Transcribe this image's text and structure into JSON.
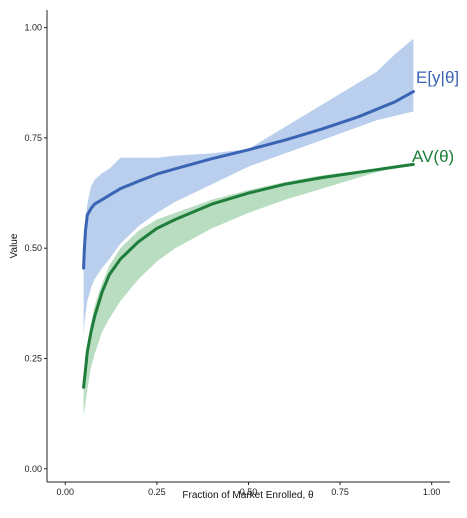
{
  "chart_data": {
    "type": "line",
    "title": "",
    "xlabel": "Fraction of Market Enrolled, θ",
    "ylabel": "Value",
    "xlim": [
      -0.05,
      1.05
    ],
    "ylim": [
      -0.03,
      1.04
    ],
    "x_ticks": [
      0.0,
      0.25,
      0.5,
      0.75,
      1.0
    ],
    "x_tick_labels": [
      "0.00",
      "0.25",
      "0.50",
      "0.75",
      "1.00"
    ],
    "y_ticks": [
      0.0,
      0.25,
      0.5,
      0.75,
      1.0
    ],
    "y_tick_labels": [
      "0.00",
      "0.25",
      "0.50",
      "0.75",
      "1.00"
    ],
    "grid": false,
    "legend": "direct labels at line ends (right)",
    "series": [
      {
        "name": "E[y|θ]",
        "color": "#3a64b4",
        "band_color": "#a9c3e8",
        "x": [
          0.05,
          0.052,
          0.055,
          0.06,
          0.07,
          0.08,
          0.1,
          0.12,
          0.15,
          0.2,
          0.25,
          0.3,
          0.4,
          0.5,
          0.6,
          0.7,
          0.8,
          0.85,
          0.9,
          0.95
        ],
        "y": [
          0.455,
          0.5,
          0.54,
          0.575,
          0.59,
          0.6,
          0.61,
          0.62,
          0.635,
          0.652,
          0.668,
          0.68,
          0.703,
          0.723,
          0.745,
          0.77,
          0.798,
          0.815,
          0.832,
          0.855
        ],
        "lower": [
          0.3,
          0.33,
          0.35,
          0.38,
          0.41,
          0.43,
          0.455,
          0.475,
          0.51,
          0.55,
          0.58,
          0.605,
          0.645,
          0.685,
          0.715,
          0.745,
          0.775,
          0.79,
          0.8,
          0.81
        ],
        "upper": [
          0.47,
          0.53,
          0.57,
          0.6,
          0.64,
          0.655,
          0.67,
          0.68,
          0.705,
          0.705,
          0.705,
          0.71,
          0.715,
          0.725,
          0.775,
          0.825,
          0.875,
          0.9,
          0.94,
          0.975
        ]
      },
      {
        "name": "AV(θ)",
        "color": "#1e7d3a",
        "band_color": "#a8d4b0",
        "x": [
          0.05,
          0.055,
          0.06,
          0.07,
          0.08,
          0.1,
          0.12,
          0.15,
          0.2,
          0.25,
          0.3,
          0.4,
          0.5,
          0.6,
          0.7,
          0.8,
          0.85,
          0.9,
          0.95
        ],
        "y": [
          0.185,
          0.225,
          0.265,
          0.31,
          0.345,
          0.4,
          0.44,
          0.475,
          0.515,
          0.545,
          0.565,
          0.6,
          0.625,
          0.645,
          0.66,
          0.672,
          0.678,
          0.684,
          0.69
        ],
        "lower": [
          0.12,
          0.15,
          0.18,
          0.23,
          0.26,
          0.31,
          0.34,
          0.38,
          0.43,
          0.47,
          0.5,
          0.545,
          0.58,
          0.61,
          0.635,
          0.66,
          0.672,
          0.683,
          0.69
        ],
        "upper": [
          0.2,
          0.24,
          0.28,
          0.33,
          0.37,
          0.42,
          0.46,
          0.5,
          0.54,
          0.565,
          0.58,
          0.61,
          0.632,
          0.65,
          0.665,
          0.676,
          0.681,
          0.686,
          0.692
        ]
      }
    ]
  }
}
